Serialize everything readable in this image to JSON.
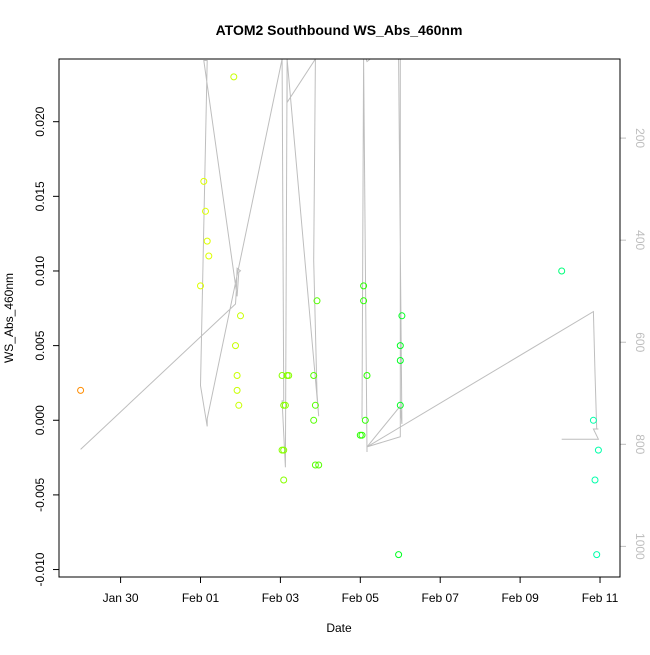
{
  "chart_data": {
    "type": "scatter",
    "title": "ATOM2 Southbound WS_Abs_460nm",
    "xlabel": "Date",
    "ylabel": "WS_Abs_460nm",
    "xlim": [
      "2016-01-28T11:00",
      "2016-02-11T12:00"
    ],
    "ylim": [
      -0.0105,
      0.0242
    ],
    "x_ticks": [
      {
        "value": "2016-01-30",
        "label": "Jan 30"
      },
      {
        "value": "2016-02-01",
        "label": "Feb 01"
      },
      {
        "value": "2016-02-03",
        "label": "Feb 03"
      },
      {
        "value": "2016-02-05",
        "label": "Feb 05"
      },
      {
        "value": "2016-02-07",
        "label": "Feb 07"
      },
      {
        "value": "2016-02-09",
        "label": "Feb 09"
      },
      {
        "value": "2016-02-11",
        "label": "Feb 11"
      }
    ],
    "y_ticks": [
      {
        "value": -0.01,
        "label": "-0.010"
      },
      {
        "value": -0.005,
        "label": "-0.005"
      },
      {
        "value": 0.0,
        "label": "0.000"
      },
      {
        "value": 0.005,
        "label": "0.005"
      },
      {
        "value": 0.01,
        "label": "0.010"
      },
      {
        "value": 0.015,
        "label": "0.015"
      },
      {
        "value": 0.02,
        "label": "0.020"
      }
    ],
    "y2_axis": {
      "side": "right",
      "reversed": true,
      "lim": [
        45,
        1060
      ],
      "ticks": [
        200,
        400,
        600,
        800,
        1000
      ],
      "color": "#bebebe"
    },
    "grid": false,
    "points": [
      {
        "x": "2016-01-29T00:00",
        "y": 0.002,
        "color": "#ff8c00"
      },
      {
        "x": "2016-02-01T00:00",
        "y": 0.009,
        "color": "#ddff00"
      },
      {
        "x": "2016-02-01T02:00",
        "y": 0.016,
        "color": "#ddff00"
      },
      {
        "x": "2016-02-01T03:00",
        "y": 0.014,
        "color": "#ddff00"
      },
      {
        "x": "2016-02-01T04:00",
        "y": 0.012,
        "color": "#ddff00"
      },
      {
        "x": "2016-02-01T05:00",
        "y": 0.011,
        "color": "#ddff00"
      },
      {
        "x": "2016-02-01T20:00",
        "y": 0.023,
        "color": "#c8ff00"
      },
      {
        "x": "2016-02-01T21:00",
        "y": 0.005,
        "color": "#c8ff00"
      },
      {
        "x": "2016-02-01T22:00",
        "y": 0.003,
        "color": "#c8ff00"
      },
      {
        "x": "2016-02-01T22:00",
        "y": 0.002,
        "color": "#c8ff00"
      },
      {
        "x": "2016-02-01T23:00",
        "y": 0.001,
        "color": "#c8ff00"
      },
      {
        "x": "2016-02-02T00:00",
        "y": 0.007,
        "color": "#c8ff00"
      },
      {
        "x": "2016-02-03T01:00",
        "y": 0.003,
        "color": "#88ff00"
      },
      {
        "x": "2016-02-03T01:00",
        "y": -0.002,
        "color": "#88ff00"
      },
      {
        "x": "2016-02-03T02:00",
        "y": -0.002,
        "color": "#88ff00"
      },
      {
        "x": "2016-02-03T02:00",
        "y": -0.004,
        "color": "#88ff00"
      },
      {
        "x": "2016-02-03T02:00",
        "y": 0.001,
        "color": "#88ff00"
      },
      {
        "x": "2016-02-03T03:00",
        "y": 0.001,
        "color": "#88ff00"
      },
      {
        "x": "2016-02-03T04:00",
        "y": 0.003,
        "color": "#88ff00"
      },
      {
        "x": "2016-02-03T05:00",
        "y": 0.003,
        "color": "#88ff00"
      },
      {
        "x": "2016-02-03T20:00",
        "y": 0.003,
        "color": "#55ff00"
      },
      {
        "x": "2016-02-03T20:00",
        "y": 0.0,
        "color": "#55ff00"
      },
      {
        "x": "2016-02-03T21:00",
        "y": 0.001,
        "color": "#55ff00"
      },
      {
        "x": "2016-02-03T21:00",
        "y": -0.003,
        "color": "#55ff00"
      },
      {
        "x": "2016-02-03T22:00",
        "y": 0.008,
        "color": "#55ff00"
      },
      {
        "x": "2016-02-03T23:00",
        "y": -0.003,
        "color": "#55ff00"
      },
      {
        "x": "2016-02-05T00:00",
        "y": -0.001,
        "color": "#2bff00"
      },
      {
        "x": "2016-02-05T01:00",
        "y": -0.001,
        "color": "#2bff00"
      },
      {
        "x": "2016-02-05T02:00",
        "y": 0.009,
        "color": "#2bff00"
      },
      {
        "x": "2016-02-05T02:00",
        "y": 0.008,
        "color": "#2bff00"
      },
      {
        "x": "2016-02-05T03:00",
        "y": 0.0,
        "color": "#2bff00"
      },
      {
        "x": "2016-02-05T04:00",
        "y": 0.003,
        "color": "#2bff00"
      },
      {
        "x": "2016-02-05T23:00",
        "y": -0.009,
        "color": "#00ff22"
      },
      {
        "x": "2016-02-06T00:00",
        "y": 0.004,
        "color": "#00ff22"
      },
      {
        "x": "2016-02-06T00:00",
        "y": 0.005,
        "color": "#00ff22"
      },
      {
        "x": "2016-02-06T00:00",
        "y": 0.001,
        "color": "#00ff22"
      },
      {
        "x": "2016-02-06T01:00",
        "y": 0.007,
        "color": "#00ff22"
      },
      {
        "x": "2016-02-10T01:00",
        "y": 0.01,
        "color": "#00ff7a"
      },
      {
        "x": "2016-02-10T20:00",
        "y": 0.0,
        "color": "#00ffaa"
      },
      {
        "x": "2016-02-10T21:00",
        "y": -0.004,
        "color": "#00ffaa"
      },
      {
        "x": "2016-02-10T22:00",
        "y": -0.009,
        "color": "#00ffaa"
      },
      {
        "x": "2016-02-10T23:00",
        "y": -0.002,
        "color": "#00ffaa"
      }
    ],
    "depth_line": {
      "color": "#bebebe",
      "x": [
        "2016-01-29T00:00",
        "2016-02-01T21:00",
        "2016-02-01T21:30",
        "2016-02-01T22:00",
        "2016-02-02T00:00",
        "2016-02-01T23:00",
        "2016-02-01T22:00",
        "2016-02-01T02:00",
        "2016-02-01T04:00",
        "2016-02-01T00:00",
        "2016-02-01T04:00",
        "2016-02-01T04:00",
        "2016-02-03T01:00",
        "2016-02-03T02:00",
        "2016-02-03T02:00",
        "2016-02-03T01:00",
        "2016-02-03T03:00",
        "2016-02-03T04:00",
        "2016-02-03T04:00",
        "2016-02-03T21:00",
        "2016-02-03T21:00",
        "2016-02-03T20:00",
        "2016-02-03T22:00",
        "2016-02-03T23:00",
        "2016-02-03T04:00",
        "2016-02-06T00:00",
        "2016-02-06T00:00",
        "2016-02-05T23:00",
        "2016-02-06T01:00",
        "2016-02-06T00:00",
        "2016-02-05T04:00",
        "2016-02-05T04:00",
        "2016-02-05T02:00",
        "2016-02-05T01:00",
        "2016-02-05T02:00",
        "2016-02-05T03:00",
        "2016-02-05T04:00",
        "2016-02-05T06:00",
        "2016-02-05T18:00",
        "2016-02-05T22:00",
        "2016-02-06T00:00",
        "2016-02-06T00:00",
        "2016-02-05T04:00",
        "2016-02-10T20:00",
        "2016-02-10T21:00",
        "2016-02-10T22:00",
        "2016-02-10T23:00",
        "2016-02-10T20:00",
        "2016-02-10T23:00",
        "2016-02-10T01:00"
      ],
      "y2": [
        810,
        525,
        500,
        455,
        460,
        463,
        510,
        48,
        48,
        685,
        765,
        750,
        45,
        700,
        715,
        715,
        845,
        45,
        130,
        45,
        45,
        440,
        700,
        745,
        45,
        45,
        45,
        45,
        760,
        725,
        805,
        815,
        45,
        750,
        40,
        40,
        50,
        45,
        45,
        45,
        45,
        785,
        805,
        540,
        660,
        770,
        770,
        770,
        790,
        790
      ]
    }
  }
}
